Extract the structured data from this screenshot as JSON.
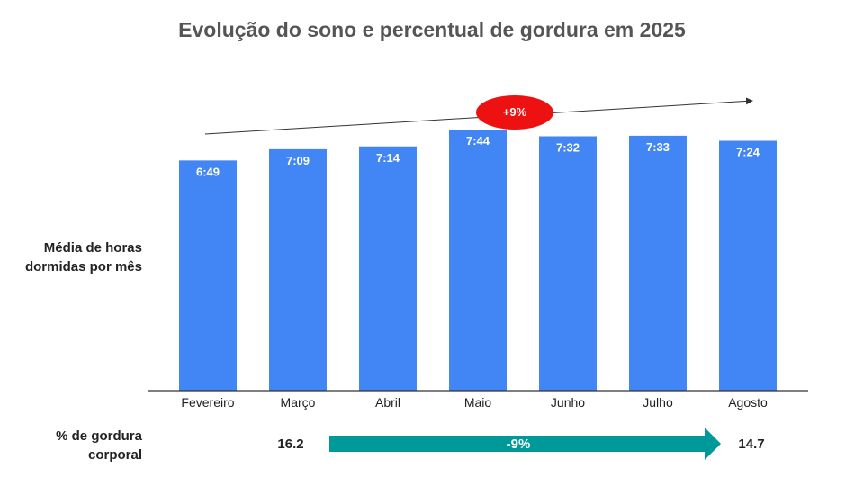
{
  "title": "Evolução do sono e percentual de gordura em 2025",
  "ylabel_lines": [
    "Média de horas",
    "dormidas por mês"
  ],
  "colors": {
    "bar": "#4285f4",
    "badge": "#ee1111",
    "fat_arrow": "#009999",
    "axis": "#333333"
  },
  "chart_data": {
    "type": "bar",
    "title": "Evolução do sono e percentual de gordura em 2025",
    "ylabel": "Média de horas dormidas por mês",
    "categories": [
      "Fevereiro",
      "Março",
      "Abril",
      "Maio",
      "Junho",
      "Julho",
      "Agosto"
    ],
    "values_minutes": [
      409,
      429,
      434,
      464,
      452,
      453,
      444
    ],
    "data_labels": [
      "6:49",
      "7:09",
      "7:14",
      "7:44",
      "7:32",
      "7:33",
      "7:24"
    ],
    "ylim_minutes": [
      0,
      480
    ],
    "grid": false,
    "trend": {
      "label": "+9%",
      "direction": "up"
    }
  },
  "fat": {
    "label_lines": [
      "% de gordura",
      "corporal"
    ],
    "start_value": "16.2",
    "end_value": "14.7",
    "change_label": "-9%"
  }
}
